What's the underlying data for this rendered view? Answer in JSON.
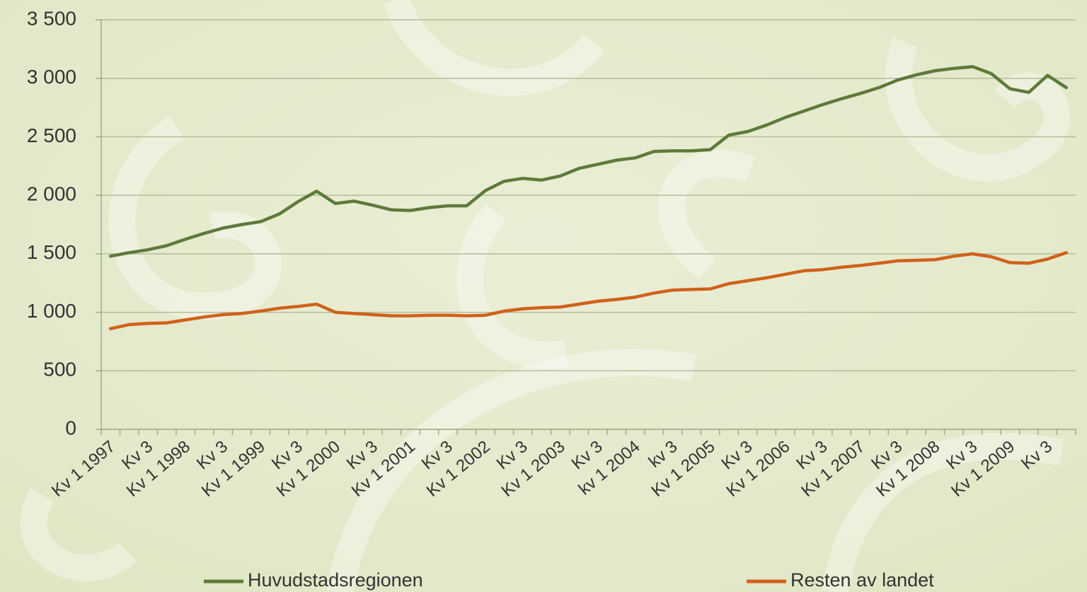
{
  "chart_data": {
    "type": "line",
    "categories": [
      "Kv 1 1997",
      null,
      "Kv 3",
      null,
      "Kv 1 1998",
      null,
      "Kv 3",
      null,
      "Kv 1 1999",
      null,
      "Kv 3",
      null,
      "Kv 1 2000",
      null,
      "Kv 3",
      null,
      "Kv 1 2001",
      null,
      "Kv 3",
      null,
      "Kv 1 2002",
      null,
      "Kv 3",
      null,
      "Kv 1 2003",
      null,
      "Kv 3",
      null,
      "kv 1 2004",
      null,
      "kv 3",
      null,
      "Kv 1 2005",
      null,
      "Kv 3",
      null,
      "Kv 1 2006",
      null,
      "Kv 3",
      null,
      "Kv 1 2007",
      null,
      "Kv 3",
      null,
      "Kv 1 2008",
      null,
      "Kv 3",
      null,
      "Kv 1 2009",
      null,
      "Kv 3",
      null
    ],
    "series": [
      {
        "name": "Huvudstadsregionen",
        "color": "#5e7a3a",
        "values": [
          1480,
          1510,
          1535,
          1570,
          1625,
          1675,
          1720,
          1750,
          1775,
          1840,
          1945,
          2035,
          1930,
          1950,
          1915,
          1875,
          1870,
          1895,
          1910,
          1910,
          2040,
          2120,
          2145,
          2130,
          2165,
          2230,
          2265,
          2300,
          2320,
          2375,
          2380,
          2380,
          2390,
          2515,
          2545,
          2600,
          2665,
          2720,
          2775,
          2825,
          2870,
          2920,
          2985,
          3030,
          3065,
          3085,
          3100,
          3040,
          2910,
          2880,
          3025,
          2920
        ]
      },
      {
        "name": "Resten av landet",
        "color": "#d0611b",
        "values": [
          860,
          895,
          905,
          910,
          935,
          960,
          980,
          990,
          1010,
          1035,
          1050,
          1070,
          1000,
          990,
          980,
          970,
          970,
          975,
          975,
          970,
          975,
          1010,
          1030,
          1040,
          1045,
          1070,
          1095,
          1110,
          1130,
          1165,
          1190,
          1195,
          1200,
          1245,
          1270,
          1295,
          1325,
          1355,
          1365,
          1385,
          1400,
          1420,
          1440,
          1445,
          1450,
          1480,
          1500,
          1475,
          1425,
          1420,
          1455,
          1510
        ]
      }
    ],
    "ylim": [
      0,
      3500
    ],
    "yticks": [
      0,
      500,
      {
        "value": 1000,
        "label": "1 000"
      },
      {
        "value": 1500,
        "label": "1 500"
      },
      {
        "value": 2000,
        "label": "2 000"
      },
      {
        "value": 2500,
        "label": "2 500"
      },
      {
        "value": 3000,
        "label": "3 000"
      },
      {
        "value": 3500,
        "label": "3 500"
      }
    ],
    "grid": true,
    "legend": "bottom"
  }
}
